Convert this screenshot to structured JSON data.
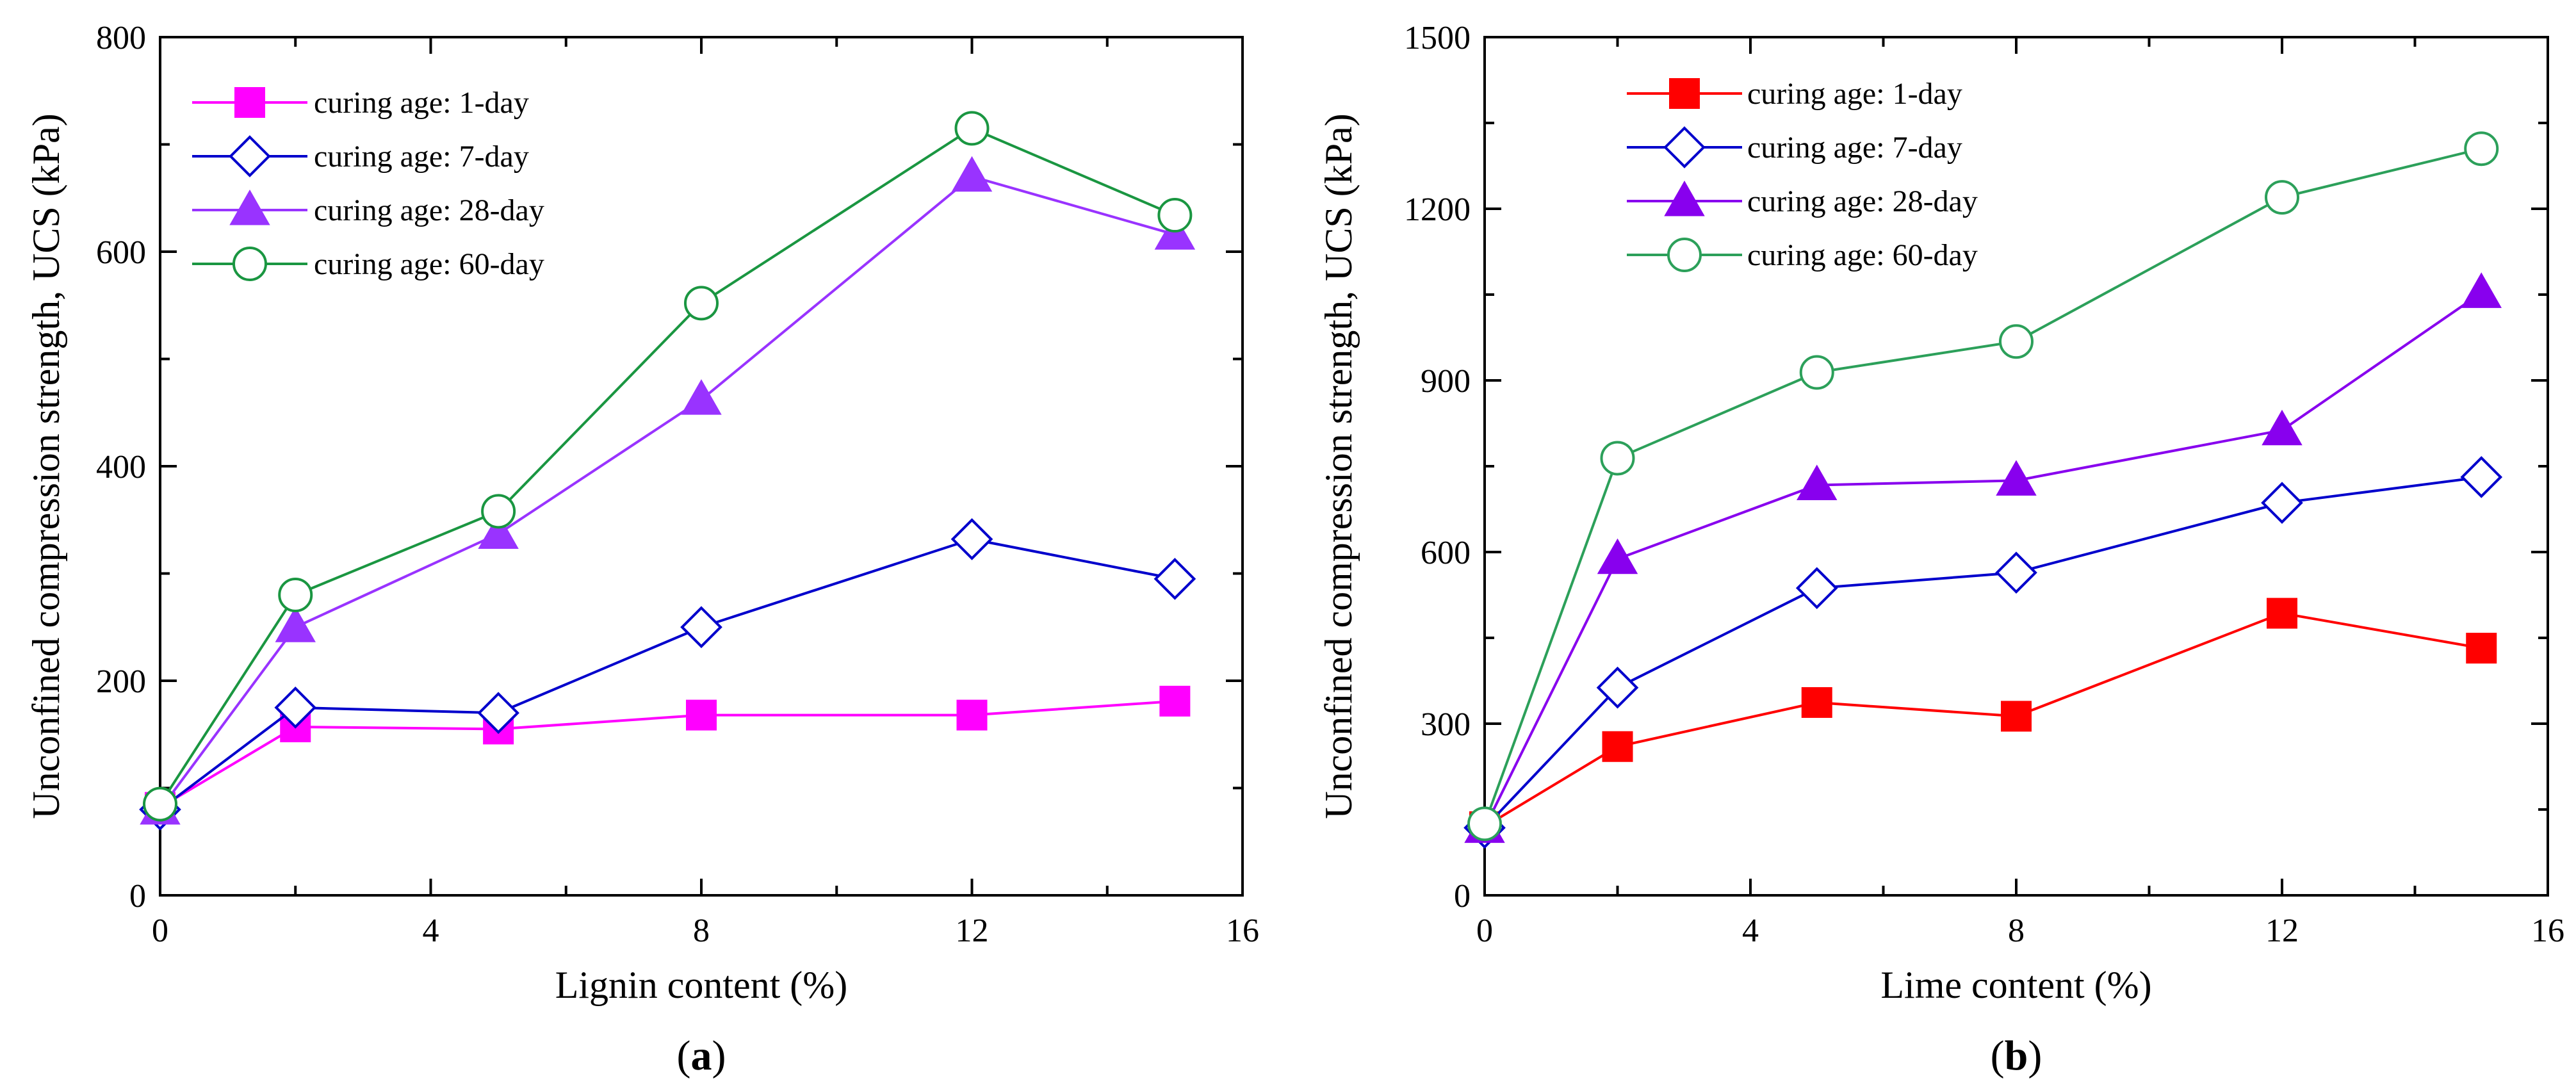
{
  "chart_data": [
    {
      "type": "line",
      "panel_label": "a",
      "xlabel": "Lignin content (%)",
      "ylabel": "Unconfined compression strength, UCS (kPa)",
      "xlim": [
        0,
        16
      ],
      "ylim": [
        0,
        800
      ],
      "xticks": [
        0,
        4,
        8,
        12,
        16
      ],
      "yticks": [
        0,
        200,
        400,
        600,
        800
      ],
      "x": [
        0,
        2,
        5,
        8,
        12,
        15
      ],
      "legend_position": "top-left",
      "series": [
        {
          "name": "curing age: 1-day",
          "values": [
            82,
            157,
            155,
            168,
            168,
            181
          ],
          "color": "#ff00ff",
          "marker": "square-filled"
        },
        {
          "name": "curing age: 7-day",
          "values": [
            80,
            175,
            170,
            250,
            332,
            295
          ],
          "color": "#0000cc",
          "marker": "diamond-open"
        },
        {
          "name": "curing age: 28-day",
          "values": [
            80,
            250,
            337,
            462,
            670,
            616
          ],
          "color": "#9933ff",
          "marker": "triangle-filled"
        },
        {
          "name": "curing age: 60-day",
          "values": [
            85,
            280,
            358,
            552,
            715,
            634
          ],
          "color": "#1a9641",
          "marker": "circle-open"
        }
      ]
    },
    {
      "type": "line",
      "panel_label": "b",
      "xlabel": "Lime content (%)",
      "ylabel": "Unconfined compression strength, UCS (kPa)",
      "xlim": [
        0,
        16
      ],
      "ylim": [
        0,
        1500
      ],
      "xticks": [
        0,
        4,
        8,
        12,
        16
      ],
      "yticks": [
        0,
        300,
        600,
        900,
        1200,
        1500
      ],
      "x": [
        0,
        2,
        5,
        8,
        12,
        15
      ],
      "legend_position": "top-left",
      "series": [
        {
          "name": "curing age: 1-day",
          "values": [
            120,
            260,
            337,
            313,
            493,
            432
          ],
          "color": "#ff0000",
          "marker": "square-filled"
        },
        {
          "name": "curing age: 7-day",
          "values": [
            118,
            363,
            537,
            564,
            686,
            731
          ],
          "color": "#0000cc",
          "marker": "diamond-open"
        },
        {
          "name": "curing age: 28-day",
          "values": [
            118,
            588,
            717,
            725,
            813,
            1053
          ],
          "color": "#8800ee",
          "marker": "triangle-filled"
        },
        {
          "name": "curing age: 60-day",
          "values": [
            125,
            764,
            914,
            968,
            1220,
            1305
          ],
          "color": "#2ca05a",
          "marker": "circle-open"
        }
      ]
    }
  ]
}
